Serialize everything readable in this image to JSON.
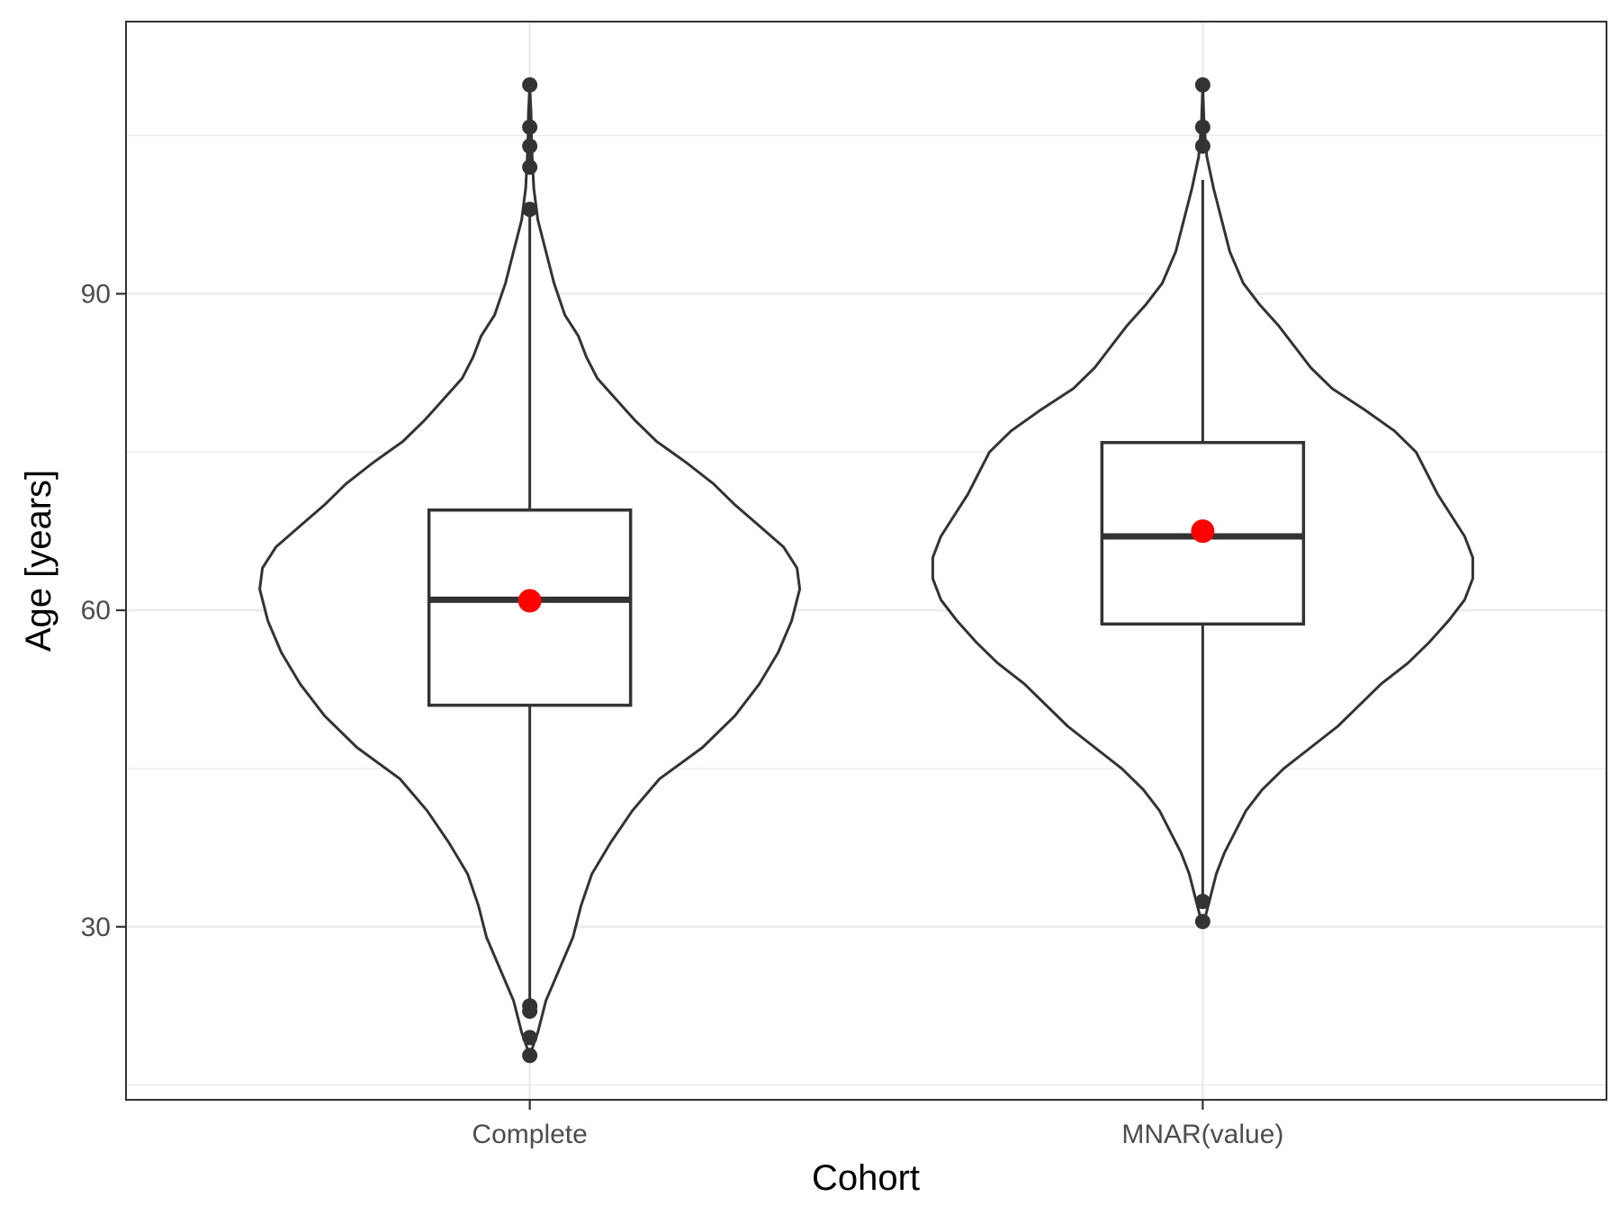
{
  "chart_data": {
    "type": "violin",
    "xlabel": "Cohort",
    "ylabel": "Age [years]",
    "categories": [
      "Complete",
      "MNAR(value)"
    ],
    "y_ticks": [
      30,
      60,
      90
    ],
    "y_tick_labels": [
      "30",
      "60",
      "90"
    ],
    "ylim": [
      13.6,
      115.8
    ],
    "grid": true,
    "colors": {
      "outline": "#333333",
      "mean": "#ff0000",
      "grid": "#ebebeb"
    },
    "groups": [
      {
        "name": "Complete",
        "box": {
          "q1": 51.0,
          "median": 61.0,
          "q3": 69.5,
          "whisker_low": 22.5,
          "whisker_high": 98.0
        },
        "mean": 60.9,
        "outliers": [
          109.8,
          105.8,
          104.0,
          102.0,
          98.0,
          22.5,
          22.0,
          19.5,
          17.8
        ],
        "density": [
          [
            17.8,
            0.0
          ],
          [
            20,
            0.03
          ],
          [
            23,
            0.06
          ],
          [
            26,
            0.11
          ],
          [
            29,
            0.16
          ],
          [
            32,
            0.19
          ],
          [
            35,
            0.23
          ],
          [
            38,
            0.3
          ],
          [
            41,
            0.38
          ],
          [
            44,
            0.48
          ],
          [
            47,
            0.64
          ],
          [
            50,
            0.76
          ],
          [
            53,
            0.85
          ],
          [
            56,
            0.92
          ],
          [
            59,
            0.97
          ],
          [
            62,
            1.0
          ],
          [
            64,
            0.99
          ],
          [
            66,
            0.94
          ],
          [
            68,
            0.85
          ],
          [
            70,
            0.76
          ],
          [
            72,
            0.68
          ],
          [
            74,
            0.58
          ],
          [
            76,
            0.47
          ],
          [
            78,
            0.39
          ],
          [
            80,
            0.32
          ],
          [
            82,
            0.25
          ],
          [
            84,
            0.21
          ],
          [
            86,
            0.18
          ],
          [
            88,
            0.13
          ],
          [
            91,
            0.09
          ],
          [
            94,
            0.06
          ],
          [
            97,
            0.03
          ],
          [
            100,
            0.015
          ],
          [
            104,
            0.007
          ],
          [
            107,
            0.005
          ],
          [
            109.8,
            0.0
          ]
        ]
      },
      {
        "name": "MNAR(value)",
        "box": {
          "q1": 58.7,
          "median": 67.0,
          "q3": 75.9,
          "whisker_low": 32.4,
          "whisker_high": 100.8
        },
        "mean": 67.5,
        "outliers": [
          109.8,
          105.8,
          104.0,
          32.4,
          30.5
        ],
        "density": [
          [
            30.5,
            0.0
          ],
          [
            31,
            0.01
          ],
          [
            33,
            0.03
          ],
          [
            35,
            0.05
          ],
          [
            37,
            0.08
          ],
          [
            39,
            0.12
          ],
          [
            41,
            0.16
          ],
          [
            43,
            0.22
          ],
          [
            45,
            0.3
          ],
          [
            47,
            0.4
          ],
          [
            49,
            0.5
          ],
          [
            51,
            0.58
          ],
          [
            53,
            0.66
          ],
          [
            55,
            0.76
          ],
          [
            57,
            0.84
          ],
          [
            59,
            0.91
          ],
          [
            61,
            0.97
          ],
          [
            63,
            1.0
          ],
          [
            65,
            1.0
          ],
          [
            67,
            0.97
          ],
          [
            69,
            0.92
          ],
          [
            71,
            0.87
          ],
          [
            73,
            0.83
          ],
          [
            75,
            0.79
          ],
          [
            77,
            0.71
          ],
          [
            79,
            0.6
          ],
          [
            81,
            0.48
          ],
          [
            83,
            0.4
          ],
          [
            85,
            0.34
          ],
          [
            87,
            0.28
          ],
          [
            89,
            0.21
          ],
          [
            91,
            0.15
          ],
          [
            94,
            0.1
          ],
          [
            97,
            0.07
          ],
          [
            100,
            0.04
          ],
          [
            103,
            0.015
          ],
          [
            106,
            0.005
          ],
          [
            109.8,
            0.0
          ]
        ]
      }
    ]
  }
}
